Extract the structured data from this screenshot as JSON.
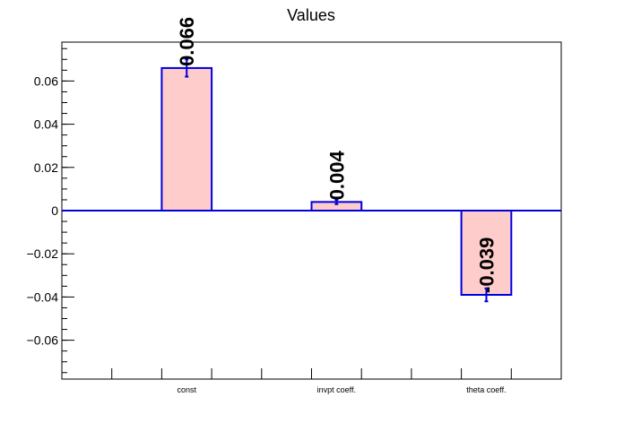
{
  "chart_data": {
    "type": "bar",
    "title": "Values",
    "categories": [
      "const",
      "invpt coeff.",
      "theta coeff."
    ],
    "values": [
      0.066,
      0.004,
      -0.039
    ],
    "errors": [
      0.004,
      0.001,
      0.003
    ],
    "data_labels": [
      "0.066",
      "0.004",
      "-0.039"
    ],
    "ylim": [
      -0.078,
      0.078
    ],
    "y_ticks": [
      -0.06,
      -0.04,
      -0.02,
      0,
      0.02,
      0.04,
      0.06
    ],
    "y_tick_labels": [
      "−0.06",
      "−0.04",
      "−0.02",
      "0",
      "0.02",
      "0.04",
      "0.06"
    ],
    "grid": false,
    "colors": {
      "bar_fill": "#ffcccc",
      "bar_stroke": "#0000dd",
      "zero_line": "#0000dd",
      "axis": "#000000"
    }
  }
}
